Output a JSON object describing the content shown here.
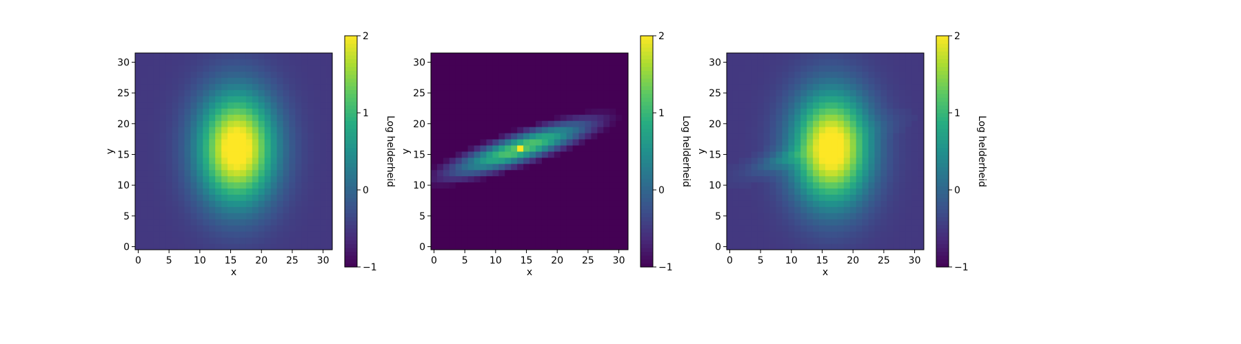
{
  "chart_data": [
    {
      "type": "heatmap",
      "panel": "left",
      "model": "gaussian",
      "params": {
        "cx": 16,
        "cy": 16,
        "sx": 4.4,
        "sy": 6.4,
        "theta": 0,
        "peak": 2.25,
        "floor": -0.5
      },
      "grid_size": [
        32,
        32
      ],
      "xlabel": "x",
      "ylabel": "y",
      "xlim": [
        -0.5,
        31.5
      ],
      "ylim": [
        -0.5,
        31.5
      ],
      "xticks": [
        0,
        5,
        10,
        15,
        20,
        25,
        30
      ],
      "yticks": [
        0,
        5,
        10,
        15,
        20,
        25,
        30
      ],
      "colormap": "viridis",
      "clim": [
        -1,
        2
      ],
      "colorbar": {
        "label": "Log helderheid",
        "ticks": [
          -1,
          0,
          1,
          2
        ],
        "tick_labels": [
          "−1",
          "0",
          "1",
          "2"
        ]
      }
    },
    {
      "type": "heatmap",
      "panel": "middle",
      "model": "elongated",
      "params": {
        "cx": 14,
        "cy": 16,
        "sx": 8.5,
        "sy": 1.6,
        "theta": 0.33,
        "peak": 1.25,
        "floor": -1.3,
        "cutoff": -0.95,
        "spike_x": 14,
        "spike_y": 16,
        "spike_value": 2.0
      },
      "grid_size": [
        32,
        32
      ],
      "xlabel": "x",
      "ylabel": "y",
      "xlim": [
        -0.5,
        31.5
      ],
      "ylim": [
        -0.5,
        31.5
      ],
      "xticks": [
        0,
        5,
        10,
        15,
        20,
        25,
        30
      ],
      "yticks": [
        0,
        5,
        10,
        15,
        20,
        25,
        30
      ],
      "colormap": "viridis",
      "clim": [
        -1,
        2
      ],
      "colorbar": {
        "label": "Log helderheid",
        "ticks": [
          -1,
          0,
          1,
          2
        ],
        "tick_labels": [
          "−1",
          "0",
          "1",
          "2"
        ]
      }
    },
    {
      "type": "heatmap",
      "panel": "right",
      "model": "sum",
      "params": {
        "cx": 16.5,
        "cy": 16,
        "sx": 4.4,
        "sy": 6.4,
        "theta": 0,
        "peak": 2.25,
        "floor": -0.5
      },
      "grid_size": [
        32,
        32
      ],
      "xlabel": "x",
      "ylabel": "y",
      "xlim": [
        -0.5,
        31.5
      ],
      "ylim": [
        -0.5,
        31.5
      ],
      "xticks": [
        0,
        5,
        10,
        15,
        20,
        25,
        30
      ],
      "yticks": [
        0,
        5,
        10,
        15,
        20,
        25,
        30
      ],
      "colormap": "viridis",
      "clim": [
        -1,
        2
      ],
      "colorbar": {
        "label": "Log helderheid",
        "ticks": [
          -1,
          0,
          1,
          2
        ],
        "tick_labels": [
          "−1",
          "0",
          "1",
          "2"
        ]
      }
    }
  ]
}
